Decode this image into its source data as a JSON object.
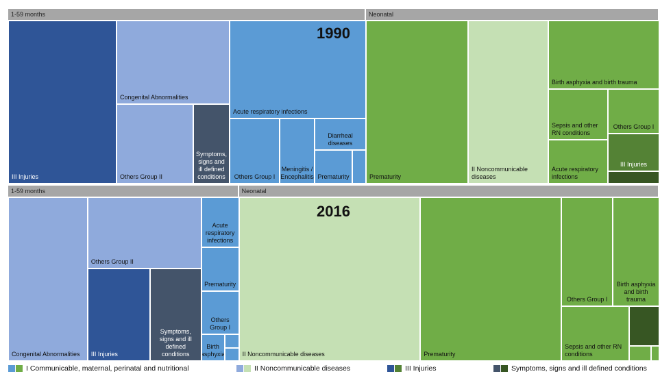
{
  "chart_data": {
    "type": "treemap",
    "panels": [
      {
        "title": "1990",
        "groups": [
          {
            "name": "1-59 months",
            "leaves": [
              {
                "name": "III Injuries",
                "color": "#2f5597",
                "value": 37604
              },
              {
                "name": "Congenital Abnormalities",
                "color": "#8faadc",
                "value": 20130
              },
              {
                "name": "Others Group II",
                "color": "#8faadc",
                "value": 12992
              },
              {
                "name": "Symptoms, signs and ill defined conditions",
                "color": "#44546a",
                "value": 6148
              },
              {
                "name": "Acute respiratory infections",
                "color": "#5b9bd5",
                "value": 28457
              },
              {
                "name": "Others Group I",
                "color": "#5b9bd5",
                "value": 6935
              },
              {
                "name": "Meningitis / Encephalitis",
                "color": "#5b9bd5",
                "value": 4845
              },
              {
                "name": "Diarrheal diseases",
                "color": "#5b9bd5",
                "value": 3450
              },
              {
                "name": "Prematurity",
                "color": "#5b9bd5",
                "value": 2695
              },
              {
                "name": null,
                "color": "#5b9bd5",
                "value": 980
              }
            ]
          },
          {
            "name": "Neonatal",
            "leaves": [
              {
                "name": "Prematurity",
                "color": "#70ad47",
                "value": 35462
              },
              {
                "name": "II Noncommunicable diseases",
                "color": "#c5e0b4",
                "value": 27846
              },
              {
                "name": "Birth asphyxia and birth trauma",
                "color": "#70ad47",
                "value": 16200
              },
              {
                "name": "Sepsis and other RN conditions",
                "color": "#70ad47",
                "value": 6438
              },
              {
                "name": "Acute respiratory infections",
                "color": "#70ad47",
                "value": 5568
              },
              {
                "name": "Others Group I",
                "color": "#70ad47",
                "value": 4875
              },
              {
                "name": "III Injuries",
                "color": "#548235",
                "value": 4125
              },
              {
                "name": null,
                "color": "#375623",
                "value": 1350
              }
            ]
          }
        ]
      },
      {
        "title": "2016",
        "groups": [
          {
            "name": "1-59 months",
            "leaves": [
              {
                "name": "Congenital Abnormalities",
                "color": "#8faadc",
                "value": 27724
              },
              {
                "name": "Others Group II",
                "color": "#8faadc",
                "value": 17264
              },
              {
                "name": "III Injuries",
                "color": "#2f5597",
                "value": 12285
              },
              {
                "name": "Symptoms, signs and ill defined conditions",
                "color": "#44546a",
                "value": 10125
              },
              {
                "name": "Acute respiratory infections",
                "color": "#5b9bd5",
                "value": 4015
              },
              {
                "name": "Prematurity",
                "color": "#5b9bd5",
                "value": 3520
              },
              {
                "name": "Others Group I",
                "color": "#5b9bd5",
                "value": 3465
              },
              {
                "name": "Birth asphyxia",
                "color": "#5b9bd5",
                "value": 1326
              },
              {
                "name": null,
                "color": "#5b9bd5",
                "value": 420
              },
              {
                "name": null,
                "color": "#5b9bd5",
                "value": 399
              }
            ]
          },
          {
            "name": "Neonatal",
            "leaves": [
              {
                "name": "II Noncommunicable diseases",
                "color": "#c5e0b4",
                "value": 63335
              },
              {
                "name": "Prematurity",
                "color": "#70ad47",
                "value": 49234
              },
              {
                "name": "Others Group I",
                "color": "#70ad47",
                "value": 11925
              },
              {
                "name": "Birth asphyxia and birth trauma",
                "color": "#70ad47",
                "value": 10812
              },
              {
                "name": "Sepsis and other RN conditions",
                "color": "#70ad47",
                "value": 7920
              },
              {
                "name": null,
                "color": "#375623",
                "value": 2552
              },
              {
                "name": null,
                "color": "#70ad47",
                "value": 704
              },
              {
                "name": null,
                "color": "#70ad47",
                "value": 264
              }
            ]
          }
        ]
      }
    ],
    "legend": [
      {
        "name": "I Communicable, maternal, perinatal and nutritional",
        "colors": [
          "#5b9bd5",
          "#70ad47"
        ]
      },
      {
        "name": "II Noncommunicable diseases",
        "colors": [
          "#8faadc",
          "#c5e0b4"
        ]
      },
      {
        "name": "III Injuries",
        "colors": [
          "#2f5597",
          "#548235"
        ]
      },
      {
        "name": "Symptoms, signs and ill defined conditions",
        "colors": [
          "#44546a",
          "#375623"
        ]
      }
    ]
  }
}
